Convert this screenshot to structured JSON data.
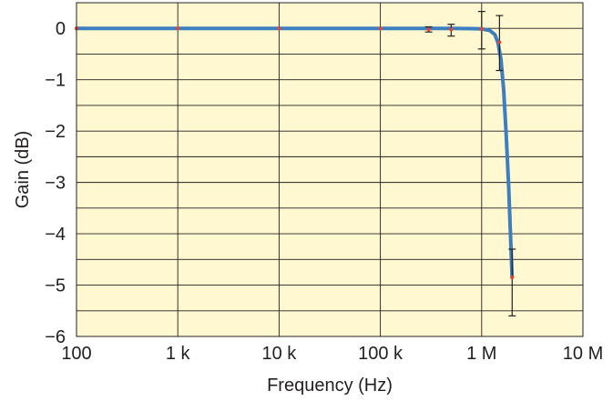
{
  "chart_data": {
    "type": "line",
    "xlabel": "Frequency (Hz)",
    "ylabel": "Gain (dB)",
    "xscale": "log",
    "xlim": [
      100,
      10000000
    ],
    "ylim": [
      -6,
      0.5
    ],
    "grid": true,
    "x_ticks": [
      {
        "value": 100,
        "label": "100"
      },
      {
        "value": 1000,
        "label": "1 k"
      },
      {
        "value": 10000,
        "label": "10 k"
      },
      {
        "value": 100000,
        "label": "100 k"
      },
      {
        "value": 1000000,
        "label": "1 M"
      },
      {
        "value": 10000000,
        "label": "10 M"
      }
    ],
    "y_ticks": [
      {
        "value": 0,
        "label": "0"
      },
      {
        "value": -1,
        "label": "−1"
      },
      {
        "value": -2,
        "label": "−2"
      },
      {
        "value": -3,
        "label": "−3"
      },
      {
        "value": -4,
        "label": "−4"
      },
      {
        "value": -5,
        "label": "−5"
      },
      {
        "value": -6,
        "label": "−6"
      }
    ],
    "series": [
      {
        "x": [
          100,
          1000,
          10000,
          100000,
          200000,
          500000,
          800000,
          1000000,
          1200000,
          1350000,
          1450000,
          1550000,
          1650000,
          1750000,
          1850000,
          1950000,
          2000000
        ],
        "y": [
          0,
          0,
          0,
          0,
          0,
          0,
          -0.005,
          -0.01,
          -0.04,
          -0.12,
          -0.28,
          -0.6,
          -1.2,
          -2.1,
          -3.1,
          -4.3,
          -4.85
        ],
        "color": "#3c7fc0"
      }
    ],
    "points": [
      {
        "x": 100,
        "y": 0
      },
      {
        "x": 1000,
        "y": 0
      },
      {
        "x": 10000,
        "y": 0
      },
      {
        "x": 100000,
        "y": 0
      },
      {
        "x": 300000,
        "y": -0.02
      },
      {
        "x": 500000,
        "y": -0.02
      },
      {
        "x": 1000000,
        "y": -0.01
      },
      {
        "x": 1500000,
        "y": -0.27
      },
      {
        "x": 2000000,
        "y": -4.85
      }
    ],
    "error_bars": [
      {
        "x": 300000,
        "low": -0.07,
        "high": 0.03
      },
      {
        "x": 500000,
        "low": -0.15,
        "high": 0.08
      },
      {
        "x": 1000000,
        "low": -0.4,
        "high": 0.33
      },
      {
        "x": 1500000,
        "low": -0.82,
        "high": 0.25
      },
      {
        "x": 2000000,
        "low": -5.6,
        "high": -4.3
      }
    ],
    "colors": {
      "plot_background": "#fff8d1",
      "grid": "#231f20",
      "line": "#3c7fc0",
      "points": "#e8432b",
      "error_bars": "#231f20",
      "text": "#231f20"
    }
  }
}
